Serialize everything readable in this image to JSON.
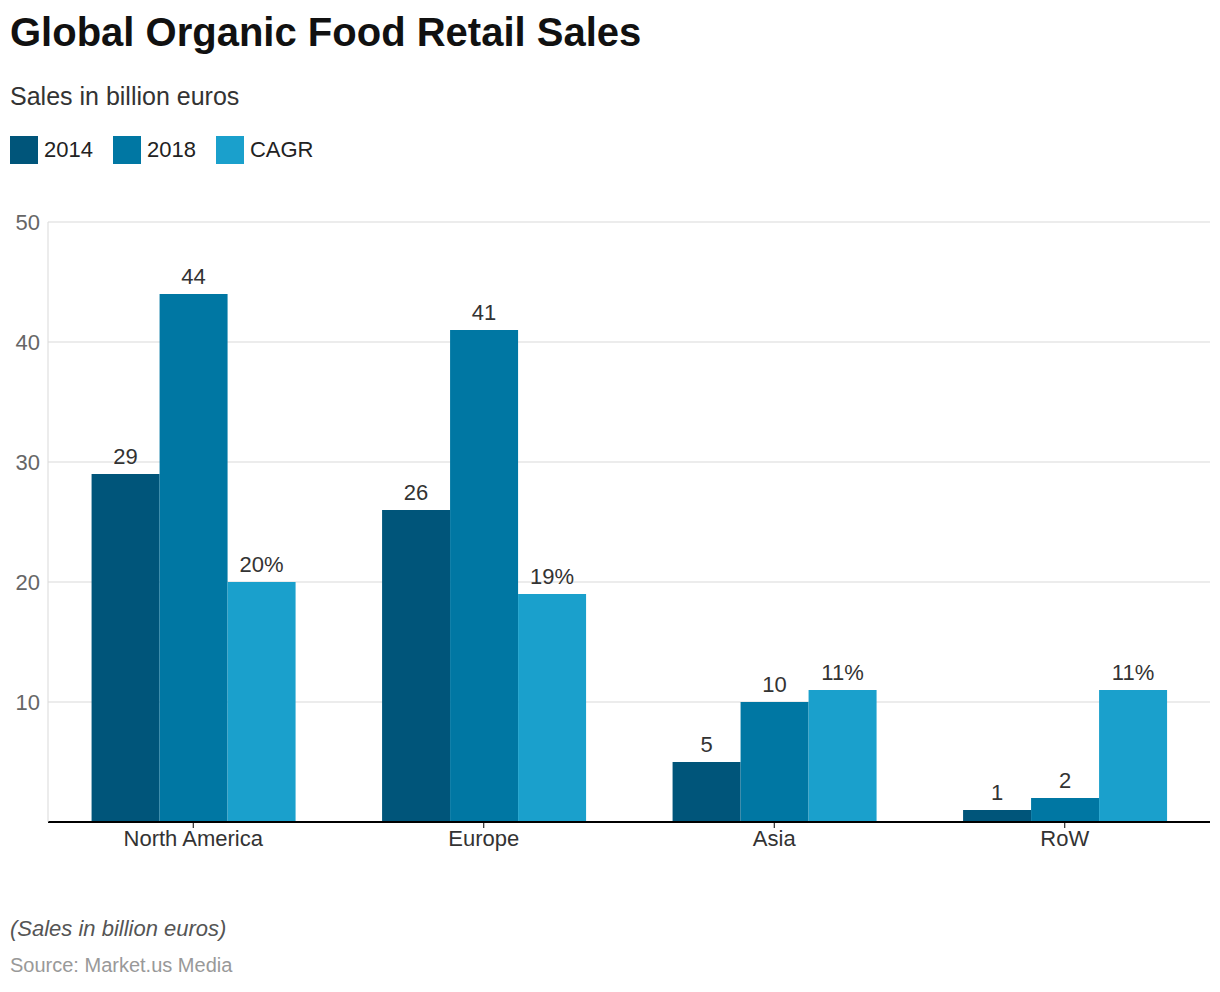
{
  "chart_data": {
    "type": "bar",
    "title": "Global Organic Food Retail Sales",
    "subtitle": "Sales in billion euros",
    "note": "(Sales in billion euros)",
    "source": "Source: Market.us Media",
    "categories": [
      "North America",
      "Europe",
      "Asia",
      "RoW"
    ],
    "series": [
      {
        "name": "2014",
        "color": "#00557a",
        "values": [
          29,
          26,
          5,
          1
        ]
      },
      {
        "name": "2018",
        "color": "#0077a3",
        "values": [
          44,
          41,
          10,
          2
        ]
      },
      {
        "name": "CAGR",
        "color": "#1aa0cc",
        "values": [
          20,
          19,
          11,
          11
        ],
        "value_labels": [
          "20%",
          "19%",
          "11%",
          "11%"
        ]
      }
    ],
    "ylim": [
      0,
      50
    ],
    "yticks": [
      10,
      20,
      30,
      40,
      50
    ],
    "grid": true,
    "legend": "top-left",
    "data_labels": true
  }
}
